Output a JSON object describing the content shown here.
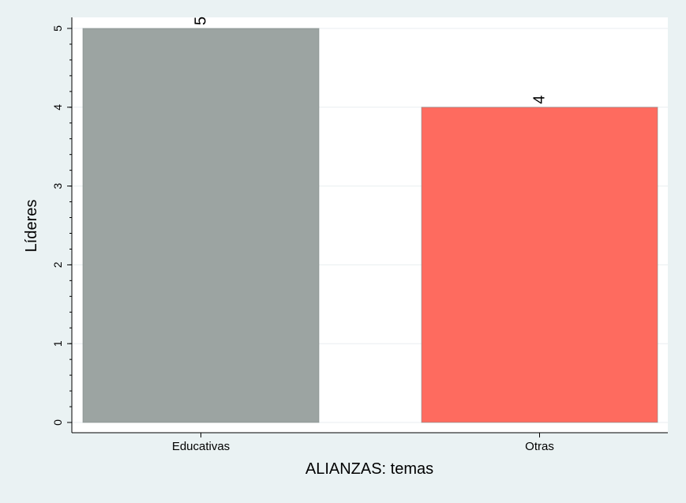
{
  "chart_data": {
    "type": "bar",
    "categories": [
      "Educativas",
      "Otras"
    ],
    "values": [
      5,
      4
    ],
    "data_labels": [
      "5",
      "4"
    ],
    "colors": [
      "#9ca4a2",
      "#fe6b5f"
    ],
    "xlabel": "ALIANZAS: temas",
    "ylabel": "Líderes",
    "ylim": [
      0,
      5
    ],
    "yticks": [
      0,
      1,
      2,
      3,
      4,
      5
    ],
    "grid": true,
    "legend": "none"
  }
}
